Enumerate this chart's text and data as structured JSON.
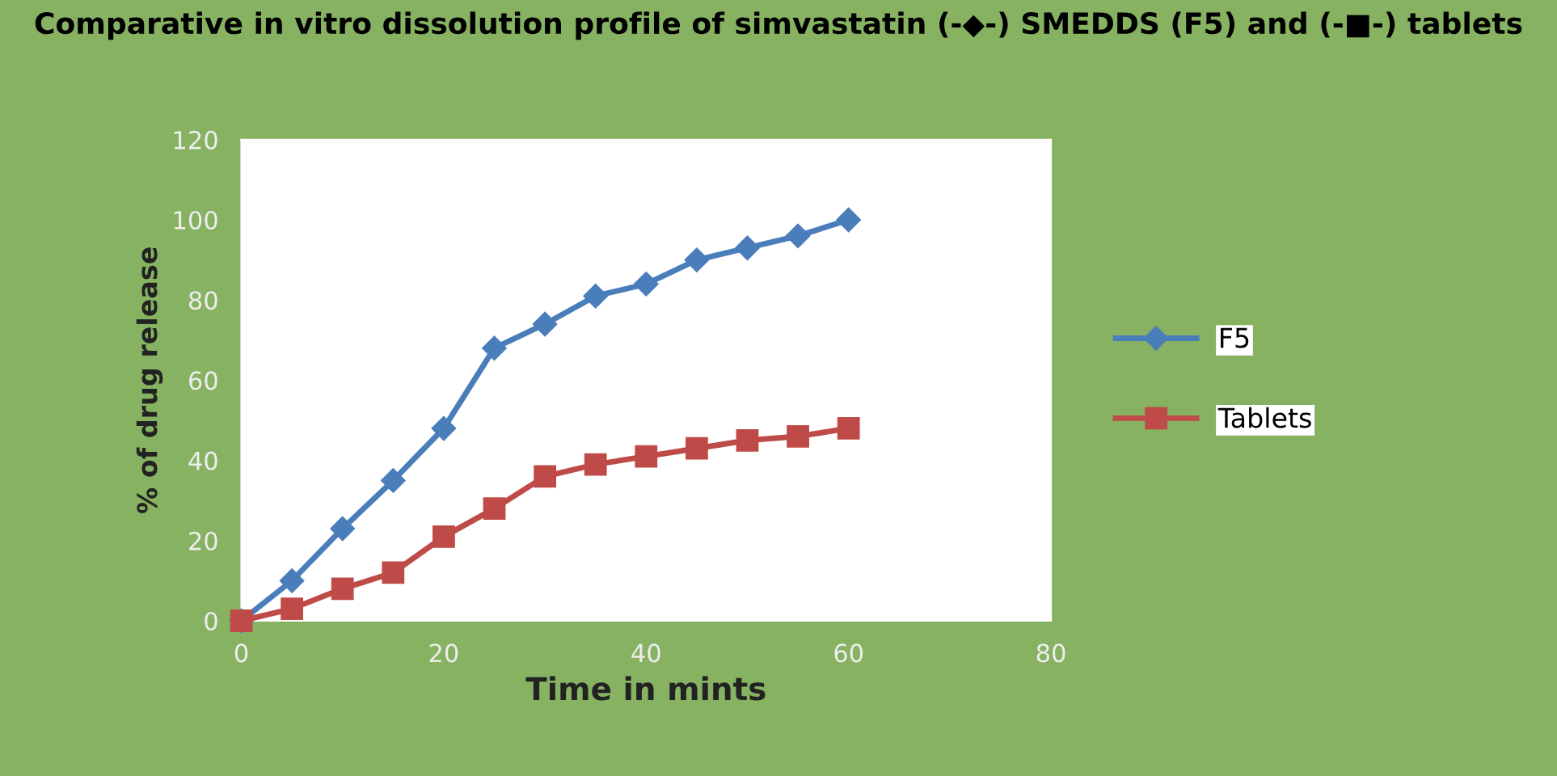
{
  "chart_data": {
    "type": "line",
    "title": "Comparative in vitro dissolution profile of simvastatin (-◆-) SMEDDS (F5) and (-■-) tablets",
    "xlabel": "Time in mints",
    "ylabel": "% of drug release",
    "x": [
      0,
      5,
      10,
      15,
      20,
      25,
      30,
      35,
      40,
      45,
      50,
      55,
      60
    ],
    "series": [
      {
        "name": "F5",
        "color": "#4a7ebb",
        "marker": "diamond",
        "values": [
          0,
          10,
          23,
          35,
          48,
          68,
          74,
          81,
          84,
          90,
          93,
          96,
          100
        ]
      },
      {
        "name": "Tablets",
        "color": "#be4b48",
        "marker": "square",
        "values": [
          0,
          3,
          8,
          12,
          21,
          28,
          36,
          39,
          41,
          43,
          45,
          46,
          48
        ]
      }
    ],
    "xlim": [
      0,
      80
    ],
    "xticks": [
      0,
      20,
      40,
      60,
      80
    ],
    "ylim": [
      0,
      120
    ],
    "yticks": [
      0,
      20,
      40,
      60,
      80,
      100,
      120
    ],
    "grid": false,
    "legend": "right",
    "line_style": "solid"
  }
}
